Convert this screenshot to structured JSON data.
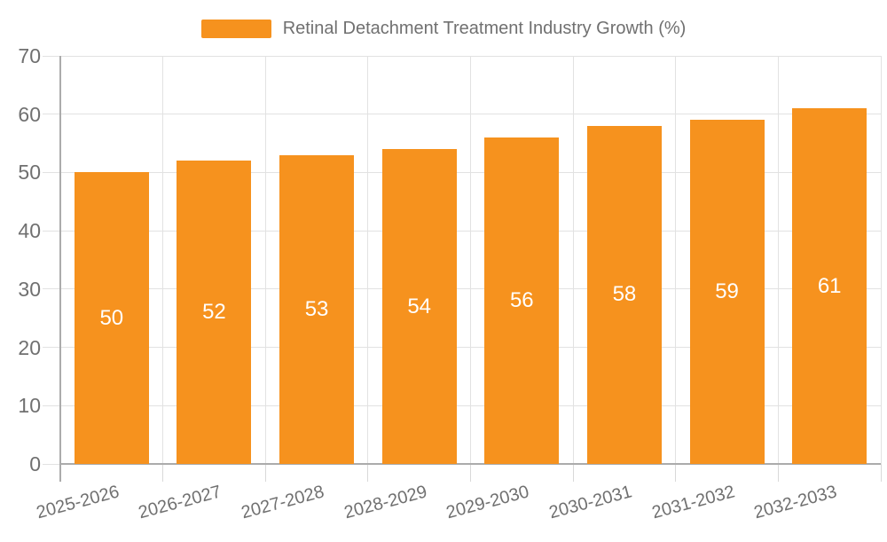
{
  "chart_data": {
    "type": "bar",
    "title": "Retinal Detachment Treatment Industry Growth (%)",
    "categories": [
      "2025-2026",
      "2026-2027",
      "2027-2028",
      "2028-2029",
      "2029-2030",
      "2030-2031",
      "2031-2032",
      "2032-2033"
    ],
    "values": [
      50,
      52,
      53,
      54,
      56,
      58,
      59,
      61
    ],
    "bar_labels": [
      "50",
      "52",
      "53",
      "54",
      "56",
      "58",
      "59",
      "61"
    ],
    "xlabel": "",
    "ylabel": "",
    "ylim": [
      0,
      70
    ],
    "yticks": [
      0,
      10,
      20,
      30,
      40,
      50,
      60,
      70
    ],
    "grid": true,
    "legend_position": "top",
    "colors": {
      "bar": "#F6921E",
      "bar_label": "#FFFFFF",
      "axis_text": "#707070",
      "gridline": "#E2E2E2",
      "tick": "#D9D9D9",
      "axis_line": "#ABABAB"
    }
  }
}
